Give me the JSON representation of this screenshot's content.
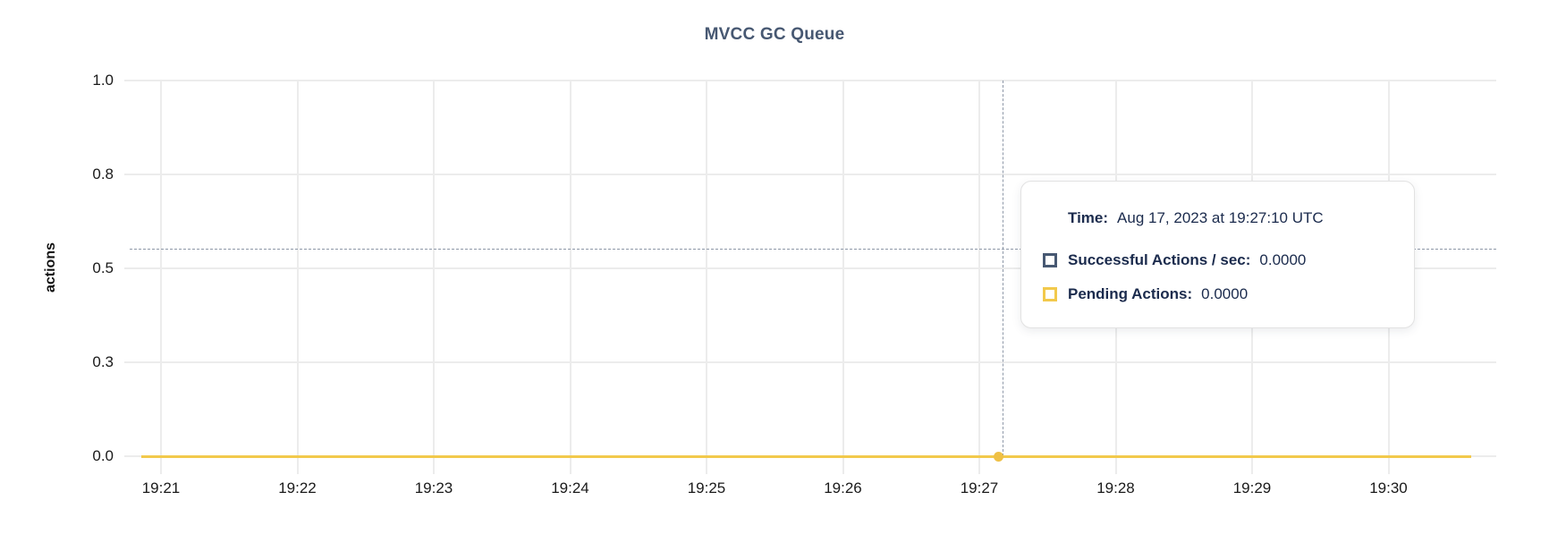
{
  "chart": {
    "title": "MVCC GC Queue",
    "ylabel": "actions"
  },
  "chart_data": {
    "type": "line",
    "title": "MVCC GC Queue",
    "xlabel": "",
    "ylabel": "actions",
    "x": [
      "19:21",
      "19:22",
      "19:23",
      "19:24",
      "19:25",
      "19:26",
      "19:27",
      "19:28",
      "19:29",
      "19:30"
    ],
    "yticks": [
      "0.0",
      "0.3",
      "0.5",
      "0.8",
      "1.0"
    ],
    "ylim": [
      0,
      1.0
    ],
    "grid": true,
    "legend_position": "tooltip-only",
    "series": [
      {
        "name": "Successful Actions / sec",
        "color": "#475872",
        "values": [
          0,
          0,
          0,
          0,
          0,
          0,
          0,
          0,
          0,
          0
        ]
      },
      {
        "name": "Pending Actions",
        "color": "#f2c94c",
        "values": [
          0,
          0,
          0,
          0,
          0,
          0,
          0,
          0,
          0,
          0
        ]
      }
    ],
    "hover_point": {
      "x": "19:27:10",
      "y": 0
    }
  },
  "tooltip": {
    "time_label": "Time:",
    "time_value": "Aug 17, 2023 at 19:27:10 UTC",
    "series": [
      {
        "label": "Successful Actions / sec:",
        "value": "0.0000",
        "swatch_color": "#475872"
      },
      {
        "label": "Pending Actions:",
        "value": "0.0000",
        "swatch_color": "#f2c94c"
      }
    ]
  },
  "colors": {
    "title": "#475872",
    "grid": "#ececec",
    "tick_text": "#1a1a1a",
    "crosshair": "#8e98a8",
    "pending_line": "#f2c94c",
    "hover_dot": "#efc045",
    "tooltip_text": "#1b2b4d"
  }
}
